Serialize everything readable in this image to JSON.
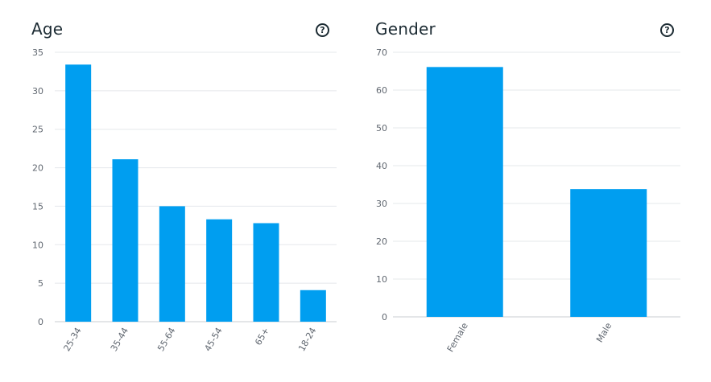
{
  "panels": {
    "age": {
      "title": "Age",
      "help_icon": "question-circle-icon",
      "help_glyph": "?"
    },
    "gender": {
      "title": "Gender",
      "help_icon": "question-circle-icon",
      "help_glyph": "?"
    }
  },
  "colors": {
    "bar": "#009ef0",
    "grid": "#e5e8eb",
    "text": "#1c2b33",
    "tick": "#606770"
  },
  "chart_data": [
    {
      "id": "age",
      "type": "bar",
      "title": "Age",
      "categories": [
        "25-34",
        "35-44",
        "55-64",
        "45-54",
        "65+",
        "18-24"
      ],
      "values": [
        33.4,
        21.1,
        15.0,
        13.3,
        12.8,
        4.1
      ],
      "ylim": [
        0,
        35
      ],
      "yticks": [
        0,
        5,
        10,
        15,
        20,
        25,
        30,
        35
      ],
      "grid": true
    },
    {
      "id": "gender",
      "type": "bar",
      "title": "Gender",
      "categories": [
        "Female",
        "Male"
      ],
      "values": [
        66.1,
        33.8
      ],
      "ylim": [
        0,
        70
      ],
      "yticks": [
        0,
        10,
        20,
        30,
        40,
        50,
        60,
        70
      ],
      "grid": true
    }
  ]
}
